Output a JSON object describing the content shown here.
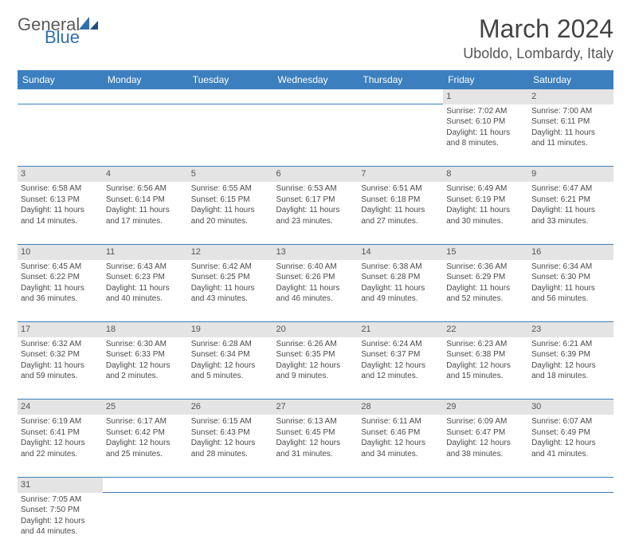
{
  "brand": {
    "name_part1": "General",
    "name_part2": "Blue"
  },
  "title": "March 2024",
  "location": "Uboldo, Lombardy, Italy",
  "colors": {
    "header_bg": "#3b7fbf",
    "header_text": "#ffffff",
    "daynum_bg": "#e4e4e4",
    "cell_border": "#3b7fbf",
    "body_text": "#4a4a4a",
    "logo_gray": "#5a5a5a",
    "logo_blue": "#2f6fb0"
  },
  "weekdays": [
    "Sunday",
    "Monday",
    "Tuesday",
    "Wednesday",
    "Thursday",
    "Friday",
    "Saturday"
  ],
  "weeks": [
    [
      null,
      null,
      null,
      null,
      null,
      {
        "d": "1",
        "sr": "Sunrise: 7:02 AM",
        "ss": "Sunset: 6:10 PM",
        "dl1": "Daylight: 11 hours",
        "dl2": "and 8 minutes."
      },
      {
        "d": "2",
        "sr": "Sunrise: 7:00 AM",
        "ss": "Sunset: 6:11 PM",
        "dl1": "Daylight: 11 hours",
        "dl2": "and 11 minutes."
      }
    ],
    [
      {
        "d": "3",
        "sr": "Sunrise: 6:58 AM",
        "ss": "Sunset: 6:13 PM",
        "dl1": "Daylight: 11 hours",
        "dl2": "and 14 minutes."
      },
      {
        "d": "4",
        "sr": "Sunrise: 6:56 AM",
        "ss": "Sunset: 6:14 PM",
        "dl1": "Daylight: 11 hours",
        "dl2": "and 17 minutes."
      },
      {
        "d": "5",
        "sr": "Sunrise: 6:55 AM",
        "ss": "Sunset: 6:15 PM",
        "dl1": "Daylight: 11 hours",
        "dl2": "and 20 minutes."
      },
      {
        "d": "6",
        "sr": "Sunrise: 6:53 AM",
        "ss": "Sunset: 6:17 PM",
        "dl1": "Daylight: 11 hours",
        "dl2": "and 23 minutes."
      },
      {
        "d": "7",
        "sr": "Sunrise: 6:51 AM",
        "ss": "Sunset: 6:18 PM",
        "dl1": "Daylight: 11 hours",
        "dl2": "and 27 minutes."
      },
      {
        "d": "8",
        "sr": "Sunrise: 6:49 AM",
        "ss": "Sunset: 6:19 PM",
        "dl1": "Daylight: 11 hours",
        "dl2": "and 30 minutes."
      },
      {
        "d": "9",
        "sr": "Sunrise: 6:47 AM",
        "ss": "Sunset: 6:21 PM",
        "dl1": "Daylight: 11 hours",
        "dl2": "and 33 minutes."
      }
    ],
    [
      {
        "d": "10",
        "sr": "Sunrise: 6:45 AM",
        "ss": "Sunset: 6:22 PM",
        "dl1": "Daylight: 11 hours",
        "dl2": "and 36 minutes."
      },
      {
        "d": "11",
        "sr": "Sunrise: 6:43 AM",
        "ss": "Sunset: 6:23 PM",
        "dl1": "Daylight: 11 hours",
        "dl2": "and 40 minutes."
      },
      {
        "d": "12",
        "sr": "Sunrise: 6:42 AM",
        "ss": "Sunset: 6:25 PM",
        "dl1": "Daylight: 11 hours",
        "dl2": "and 43 minutes."
      },
      {
        "d": "13",
        "sr": "Sunrise: 6:40 AM",
        "ss": "Sunset: 6:26 PM",
        "dl1": "Daylight: 11 hours",
        "dl2": "and 46 minutes."
      },
      {
        "d": "14",
        "sr": "Sunrise: 6:38 AM",
        "ss": "Sunset: 6:28 PM",
        "dl1": "Daylight: 11 hours",
        "dl2": "and 49 minutes."
      },
      {
        "d": "15",
        "sr": "Sunrise: 6:36 AM",
        "ss": "Sunset: 6:29 PM",
        "dl1": "Daylight: 11 hours",
        "dl2": "and 52 minutes."
      },
      {
        "d": "16",
        "sr": "Sunrise: 6:34 AM",
        "ss": "Sunset: 6:30 PM",
        "dl1": "Daylight: 11 hours",
        "dl2": "and 56 minutes."
      }
    ],
    [
      {
        "d": "17",
        "sr": "Sunrise: 6:32 AM",
        "ss": "Sunset: 6:32 PM",
        "dl1": "Daylight: 11 hours",
        "dl2": "and 59 minutes."
      },
      {
        "d": "18",
        "sr": "Sunrise: 6:30 AM",
        "ss": "Sunset: 6:33 PM",
        "dl1": "Daylight: 12 hours",
        "dl2": "and 2 minutes."
      },
      {
        "d": "19",
        "sr": "Sunrise: 6:28 AM",
        "ss": "Sunset: 6:34 PM",
        "dl1": "Daylight: 12 hours",
        "dl2": "and 5 minutes."
      },
      {
        "d": "20",
        "sr": "Sunrise: 6:26 AM",
        "ss": "Sunset: 6:35 PM",
        "dl1": "Daylight: 12 hours",
        "dl2": "and 9 minutes."
      },
      {
        "d": "21",
        "sr": "Sunrise: 6:24 AM",
        "ss": "Sunset: 6:37 PM",
        "dl1": "Daylight: 12 hours",
        "dl2": "and 12 minutes."
      },
      {
        "d": "22",
        "sr": "Sunrise: 6:23 AM",
        "ss": "Sunset: 6:38 PM",
        "dl1": "Daylight: 12 hours",
        "dl2": "and 15 minutes."
      },
      {
        "d": "23",
        "sr": "Sunrise: 6:21 AM",
        "ss": "Sunset: 6:39 PM",
        "dl1": "Daylight: 12 hours",
        "dl2": "and 18 minutes."
      }
    ],
    [
      {
        "d": "24",
        "sr": "Sunrise: 6:19 AM",
        "ss": "Sunset: 6:41 PM",
        "dl1": "Daylight: 12 hours",
        "dl2": "and 22 minutes."
      },
      {
        "d": "25",
        "sr": "Sunrise: 6:17 AM",
        "ss": "Sunset: 6:42 PM",
        "dl1": "Daylight: 12 hours",
        "dl2": "and 25 minutes."
      },
      {
        "d": "26",
        "sr": "Sunrise: 6:15 AM",
        "ss": "Sunset: 6:43 PM",
        "dl1": "Daylight: 12 hours",
        "dl2": "and 28 minutes."
      },
      {
        "d": "27",
        "sr": "Sunrise: 6:13 AM",
        "ss": "Sunset: 6:45 PM",
        "dl1": "Daylight: 12 hours",
        "dl2": "and 31 minutes."
      },
      {
        "d": "28",
        "sr": "Sunrise: 6:11 AM",
        "ss": "Sunset: 6:46 PM",
        "dl1": "Daylight: 12 hours",
        "dl2": "and 34 minutes."
      },
      {
        "d": "29",
        "sr": "Sunrise: 6:09 AM",
        "ss": "Sunset: 6:47 PM",
        "dl1": "Daylight: 12 hours",
        "dl2": "and 38 minutes."
      },
      {
        "d": "30",
        "sr": "Sunrise: 6:07 AM",
        "ss": "Sunset: 6:49 PM",
        "dl1": "Daylight: 12 hours",
        "dl2": "and 41 minutes."
      }
    ],
    [
      {
        "d": "31",
        "sr": "Sunrise: 7:05 AM",
        "ss": "Sunset: 7:50 PM",
        "dl1": "Daylight: 12 hours",
        "dl2": "and 44 minutes."
      },
      null,
      null,
      null,
      null,
      null,
      null
    ]
  ]
}
